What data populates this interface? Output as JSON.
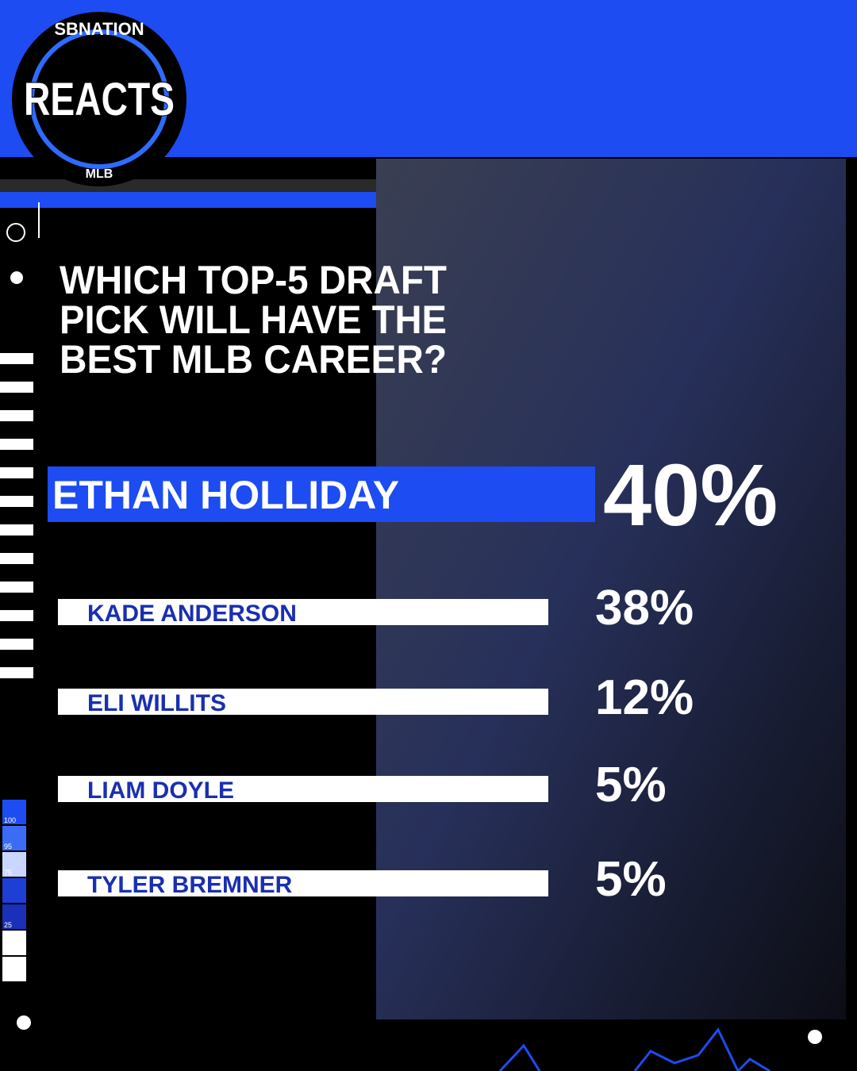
{
  "logo": {
    "top": "SBNATION",
    "main": "REACTS",
    "bottom": "MLB"
  },
  "question": [
    "WHICH TOP-5 DRAFT",
    "PICK WILL HAVE THE",
    "BEST MLB CAREER?"
  ],
  "results": [
    {
      "name": "ETHAN HOLLIDAY",
      "percent": "40%"
    },
    {
      "name": "KADE ANDERSON",
      "percent": "38%"
    },
    {
      "name": "ELI WILLITS",
      "percent": "12%"
    },
    {
      "name": "LIAM DOYLE",
      "percent": "5%"
    },
    {
      "name": "TYLER BREMNER",
      "percent": "5%"
    }
  ],
  "scale_labels": [
    "100",
    "95",
    "75",
    "25"
  ]
}
